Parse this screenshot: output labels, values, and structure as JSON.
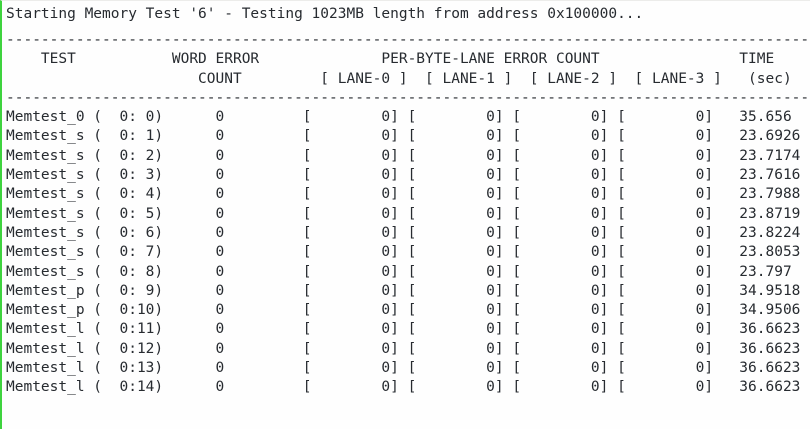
{
  "terminal": {
    "title": "Starting Memory Test '6' - Testing 1023MB length from address 0x100000...",
    "test_info": {
      "test_id": "6",
      "length": "1023MB",
      "start_address": "0x100000"
    },
    "separator": "----------------------------------------------------------------------------------------------",
    "table": {
      "header_line1": "    TEST           WORD ERROR              PER-BYTE-LANE ERROR COUNT                TIME",
      "header_line2": "                      COUNT         [ LANE-0 ]  [ LANE-1 ]  [ LANE-2 ]  [ LANE-3 ]   (sec)",
      "columns": {
        "test": "TEST",
        "word_error": "WORD ERROR COUNT",
        "per_byte_lane": "PER-BYTE-LANE ERROR COUNT",
        "lanes": [
          "[ LANE-0 ]",
          "[ LANE-1 ]",
          "[ LANE-2 ]",
          "[ LANE-3 ]"
        ],
        "time": "TIME (sec)"
      },
      "rows": [
        {
          "test": "Memtest_0",
          "group": 0,
          "index": 0,
          "word_error_count": 0,
          "lane_error_counts": [
            0,
            0,
            0,
            0
          ],
          "time_sec": "35.656"
        },
        {
          "test": "Memtest_s",
          "group": 0,
          "index": 1,
          "word_error_count": 0,
          "lane_error_counts": [
            0,
            0,
            0,
            0
          ],
          "time_sec": "23.6926"
        },
        {
          "test": "Memtest_s",
          "group": 0,
          "index": 2,
          "word_error_count": 0,
          "lane_error_counts": [
            0,
            0,
            0,
            0
          ],
          "time_sec": "23.7174"
        },
        {
          "test": "Memtest_s",
          "group": 0,
          "index": 3,
          "word_error_count": 0,
          "lane_error_counts": [
            0,
            0,
            0,
            0
          ],
          "time_sec": "23.7616"
        },
        {
          "test": "Memtest_s",
          "group": 0,
          "index": 4,
          "word_error_count": 0,
          "lane_error_counts": [
            0,
            0,
            0,
            0
          ],
          "time_sec": "23.7988"
        },
        {
          "test": "Memtest_s",
          "group": 0,
          "index": 5,
          "word_error_count": 0,
          "lane_error_counts": [
            0,
            0,
            0,
            0
          ],
          "time_sec": "23.8719"
        },
        {
          "test": "Memtest_s",
          "group": 0,
          "index": 6,
          "word_error_count": 0,
          "lane_error_counts": [
            0,
            0,
            0,
            0
          ],
          "time_sec": "23.8224"
        },
        {
          "test": "Memtest_s",
          "group": 0,
          "index": 7,
          "word_error_count": 0,
          "lane_error_counts": [
            0,
            0,
            0,
            0
          ],
          "time_sec": "23.8053"
        },
        {
          "test": "Memtest_s",
          "group": 0,
          "index": 8,
          "word_error_count": 0,
          "lane_error_counts": [
            0,
            0,
            0,
            0
          ],
          "time_sec": "23.797"
        },
        {
          "test": "Memtest_p",
          "group": 0,
          "index": 9,
          "word_error_count": 0,
          "lane_error_counts": [
            0,
            0,
            0,
            0
          ],
          "time_sec": "34.9518"
        },
        {
          "test": "Memtest_p",
          "group": 0,
          "index": 10,
          "word_error_count": 0,
          "lane_error_counts": [
            0,
            0,
            0,
            0
          ],
          "time_sec": "34.9506"
        },
        {
          "test": "Memtest_l",
          "group": 0,
          "index": 11,
          "word_error_count": 0,
          "lane_error_counts": [
            0,
            0,
            0,
            0
          ],
          "time_sec": "36.6623"
        },
        {
          "test": "Memtest_l",
          "group": 0,
          "index": 12,
          "word_error_count": 0,
          "lane_error_counts": [
            0,
            0,
            0,
            0
          ],
          "time_sec": "36.6623"
        },
        {
          "test": "Memtest_l",
          "group": 0,
          "index": 13,
          "word_error_count": 0,
          "lane_error_counts": [
            0,
            0,
            0,
            0
          ],
          "time_sec": "36.6623"
        },
        {
          "test": "Memtest_l",
          "group": 0,
          "index": 14,
          "word_error_count": 0,
          "lane_error_counts": [
            0,
            0,
            0,
            0
          ],
          "time_sec": "36.6623"
        }
      ]
    },
    "colors": {
      "text": "#272b30",
      "background": "#fefefe",
      "border_left_green": "#3ed33e",
      "border_top_faint": "#ececea"
    }
  }
}
